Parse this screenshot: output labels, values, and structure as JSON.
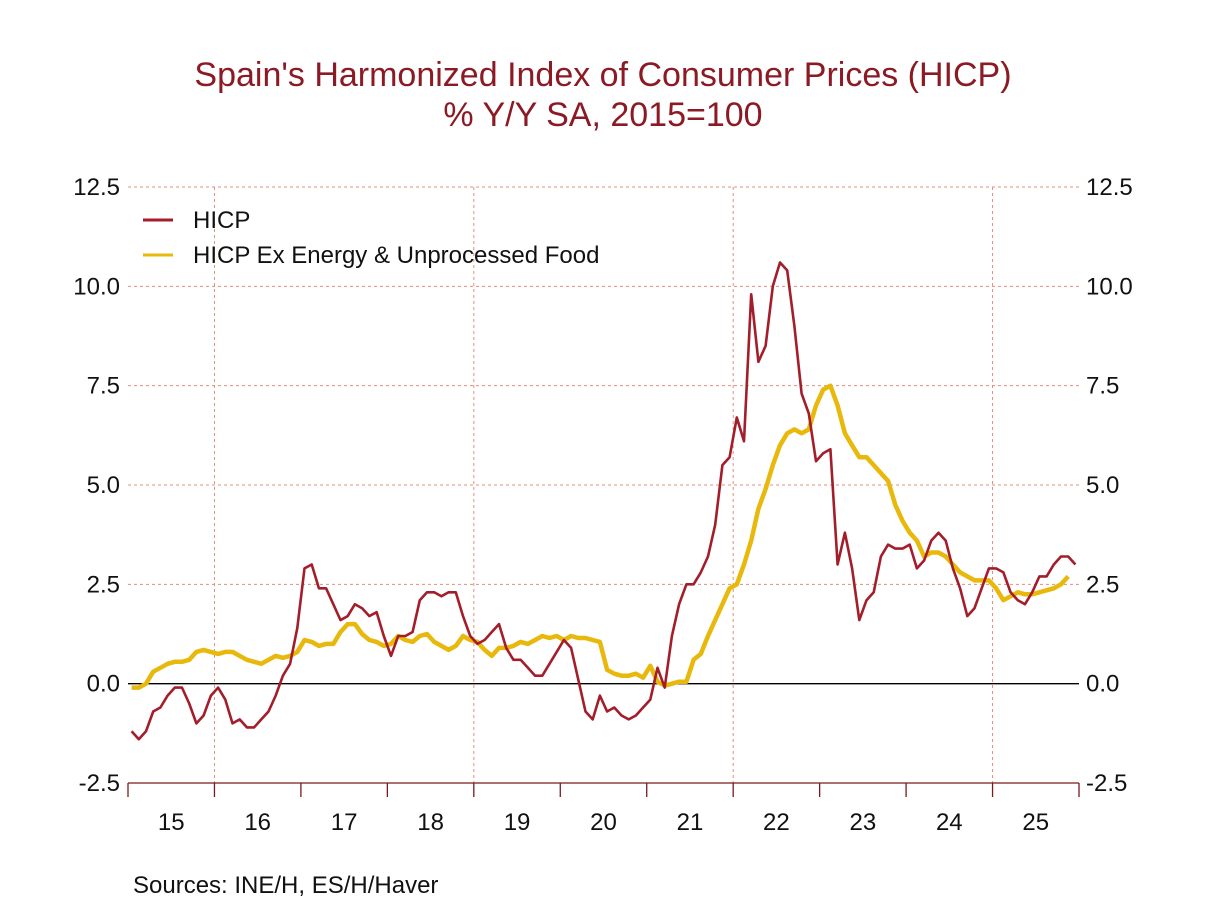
{
  "chart_data": {
    "type": "line",
    "title": "Spain's Harmonized Index of Consumer Prices (HICP)",
    "subtitle": "% Y/Y     SA, 2015=100",
    "source": "Sources:  INE/H, ES/H/Haver",
    "ylim": [
      -2.5,
      12.5
    ],
    "yticks": [
      "12.5",
      "10.0",
      "7.5",
      "5.0",
      "2.5",
      "0.0",
      "-2.5"
    ],
    "ytick_values": [
      12.5,
      10,
      7.5,
      5,
      2.5,
      0,
      -2.5
    ],
    "xlim": [
      "2015-01",
      "2025-12"
    ],
    "xtick_labels": [
      "15",
      "16",
      "17",
      "18",
      "19",
      "20",
      "21",
      "22",
      "23",
      "24",
      "25"
    ],
    "grid": true,
    "dual_y_axis": true,
    "legend_position": "top-left",
    "colors": {
      "title": "#8b1a24",
      "hicp": "#a31d2a",
      "core": "#e8b90c",
      "grid": "#e0907a",
      "axis": "#7a1a1a"
    },
    "x": [
      "2015-01",
      "2015-02",
      "2015-03",
      "2015-04",
      "2015-05",
      "2015-06",
      "2015-07",
      "2015-08",
      "2015-09",
      "2015-10",
      "2015-11",
      "2015-12",
      "2016-01",
      "2016-02",
      "2016-03",
      "2016-04",
      "2016-05",
      "2016-06",
      "2016-07",
      "2016-08",
      "2016-09",
      "2016-10",
      "2016-11",
      "2016-12",
      "2017-01",
      "2017-02",
      "2017-03",
      "2017-04",
      "2017-05",
      "2017-06",
      "2017-07",
      "2017-08",
      "2017-09",
      "2017-10",
      "2017-11",
      "2017-12",
      "2018-01",
      "2018-02",
      "2018-03",
      "2018-04",
      "2018-05",
      "2018-06",
      "2018-07",
      "2018-08",
      "2018-09",
      "2018-10",
      "2018-11",
      "2018-12",
      "2019-01",
      "2019-02",
      "2019-03",
      "2019-04",
      "2019-05",
      "2019-06",
      "2019-07",
      "2019-08",
      "2019-09",
      "2019-10",
      "2019-11",
      "2019-12",
      "2020-01",
      "2020-02",
      "2020-03",
      "2020-04",
      "2020-05",
      "2020-06",
      "2020-07",
      "2020-08",
      "2020-09",
      "2020-10",
      "2020-11",
      "2020-12",
      "2021-01",
      "2021-02",
      "2021-03",
      "2021-04",
      "2021-05",
      "2021-06",
      "2021-07",
      "2021-08",
      "2021-09",
      "2021-10",
      "2021-11",
      "2021-12",
      "2022-01",
      "2022-02",
      "2022-03",
      "2022-04",
      "2022-05",
      "2022-06",
      "2022-07",
      "2022-08",
      "2022-09",
      "2022-10",
      "2022-11",
      "2022-12",
      "2023-01",
      "2023-02",
      "2023-03",
      "2023-04",
      "2023-05",
      "2023-06",
      "2023-07",
      "2023-08",
      "2023-09",
      "2023-10",
      "2023-11",
      "2023-12",
      "2024-01",
      "2024-02",
      "2024-03",
      "2024-04",
      "2024-05",
      "2024-06",
      "2024-07",
      "2024-08",
      "2024-09",
      "2024-10",
      "2024-11",
      "2024-12",
      "2025-01",
      "2025-02",
      "2025-03",
      "2025-04",
      "2025-05",
      "2025-06",
      "2025-07",
      "2025-08",
      "2025-09",
      "2025-10",
      "2025-11",
      "2025-12"
    ],
    "series": [
      {
        "name": "HICP",
        "color": "#a31d2a",
        "values": [
          -1.2,
          -1.4,
          -1.2,
          -0.7,
          -0.6,
          -0.3,
          -0.1,
          -0.1,
          -0.5,
          -1.0,
          -0.8,
          -0.3,
          -0.1,
          -0.4,
          -1.0,
          -0.9,
          -1.1,
          -1.1,
          -0.9,
          -0.7,
          -0.3,
          0.2,
          0.5,
          1.4,
          2.9,
          3.0,
          2.4,
          2.4,
          2.0,
          1.6,
          1.7,
          2.0,
          1.9,
          1.7,
          1.8,
          1.2,
          0.7,
          1.2,
          1.2,
          1.3,
          2.1,
          2.3,
          2.3,
          2.2,
          2.3,
          2.3,
          1.7,
          1.2,
          1.0,
          1.1,
          1.3,
          1.5,
          0.9,
          0.6,
          0.6,
          0.4,
          0.2,
          0.2,
          0.5,
          0.8,
          1.1,
          0.9,
          0.1,
          -0.7,
          -0.9,
          -0.3,
          -0.7,
          -0.6,
          -0.8,
          -0.9,
          -0.8,
          -0.6,
          -0.4,
          0.4,
          -0.1,
          1.2,
          2.0,
          2.5,
          2.5,
          2.8,
          3.2,
          4.0,
          5.5,
          5.7,
          6.7,
          6.1,
          9.8,
          8.1,
          8.5,
          10.0,
          10.6,
          10.4,
          9.0,
          7.3,
          6.8,
          5.6,
          5.8,
          5.9,
          3.0,
          3.8,
          2.9,
          1.6,
          2.1,
          2.3,
          3.2,
          3.5,
          3.4,
          3.4,
          3.5,
          2.9,
          3.1,
          3.6,
          3.8,
          3.6,
          2.9,
          2.4,
          1.7,
          1.9,
          2.4,
          2.9,
          2.9,
          2.8,
          2.3,
          2.1,
          2.0,
          2.3,
          2.7,
          2.7,
          3.0,
          3.2,
          3.2,
          3.0
        ]
      },
      {
        "name": "HICP Ex Energy & Unprocessed Food",
        "color": "#e8b90c",
        "values": [
          -0.1,
          -0.1,
          0.0,
          0.3,
          0.4,
          0.5,
          0.55,
          0.55,
          0.6,
          0.8,
          0.85,
          0.8,
          0.75,
          0.8,
          0.8,
          0.7,
          0.6,
          0.55,
          0.5,
          0.6,
          0.7,
          0.65,
          0.7,
          0.8,
          1.1,
          1.05,
          0.95,
          1.0,
          1.0,
          1.3,
          1.5,
          1.5,
          1.25,
          1.1,
          1.05,
          0.95,
          1.0,
          1.2,
          1.1,
          1.05,
          1.2,
          1.25,
          1.05,
          0.95,
          0.85,
          0.95,
          1.2,
          1.1,
          1.05,
          0.85,
          0.7,
          0.9,
          0.9,
          0.95,
          1.05,
          1.0,
          1.1,
          1.2,
          1.15,
          1.2,
          1.1,
          1.2,
          1.15,
          1.15,
          1.1,
          1.05,
          0.35,
          0.25,
          0.2,
          0.2,
          0.25,
          0.15,
          0.45,
          0.05,
          -0.05,
          0.0,
          0.05,
          0.05,
          0.6,
          0.75,
          1.2,
          1.6,
          2.0,
          2.4,
          2.5,
          3.0,
          3.6,
          4.4,
          4.9,
          5.5,
          6.0,
          6.3,
          6.4,
          6.3,
          6.4,
          7.0,
          7.4,
          7.5,
          7.0,
          6.3,
          6.0,
          5.7,
          5.7,
          5.5,
          5.3,
          5.1,
          4.5,
          4.1,
          3.8,
          3.6,
          3.2,
          3.3,
          3.3,
          3.2,
          3.0,
          2.8,
          2.7,
          2.6,
          2.6,
          2.6,
          2.4,
          2.1,
          2.2,
          2.3,
          2.25,
          2.25,
          2.3,
          2.35,
          2.4,
          2.5,
          2.7,
          null
        ]
      }
    ]
  }
}
